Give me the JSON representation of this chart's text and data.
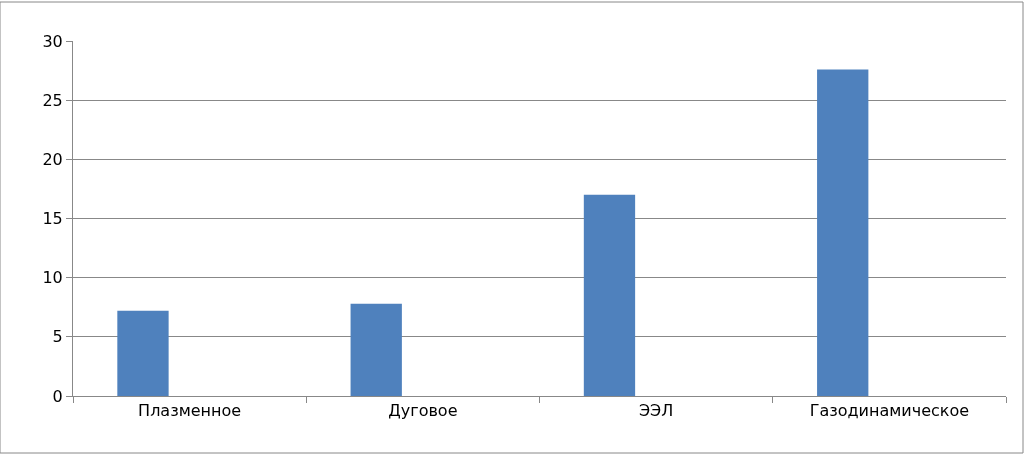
{
  "chart_data": {
    "type": "bar",
    "categories": [
      "Плазменное",
      "Дуговое",
      "ЭЭЛ",
      "Газодинамическое"
    ],
    "values": [
      7.2,
      7.8,
      17,
      27.6
    ],
    "color": "#4f81bd",
    "ylim": [
      0,
      30
    ],
    "yticks": [
      0,
      5,
      10,
      15,
      20,
      25,
      30
    ],
    "grid": "y"
  }
}
